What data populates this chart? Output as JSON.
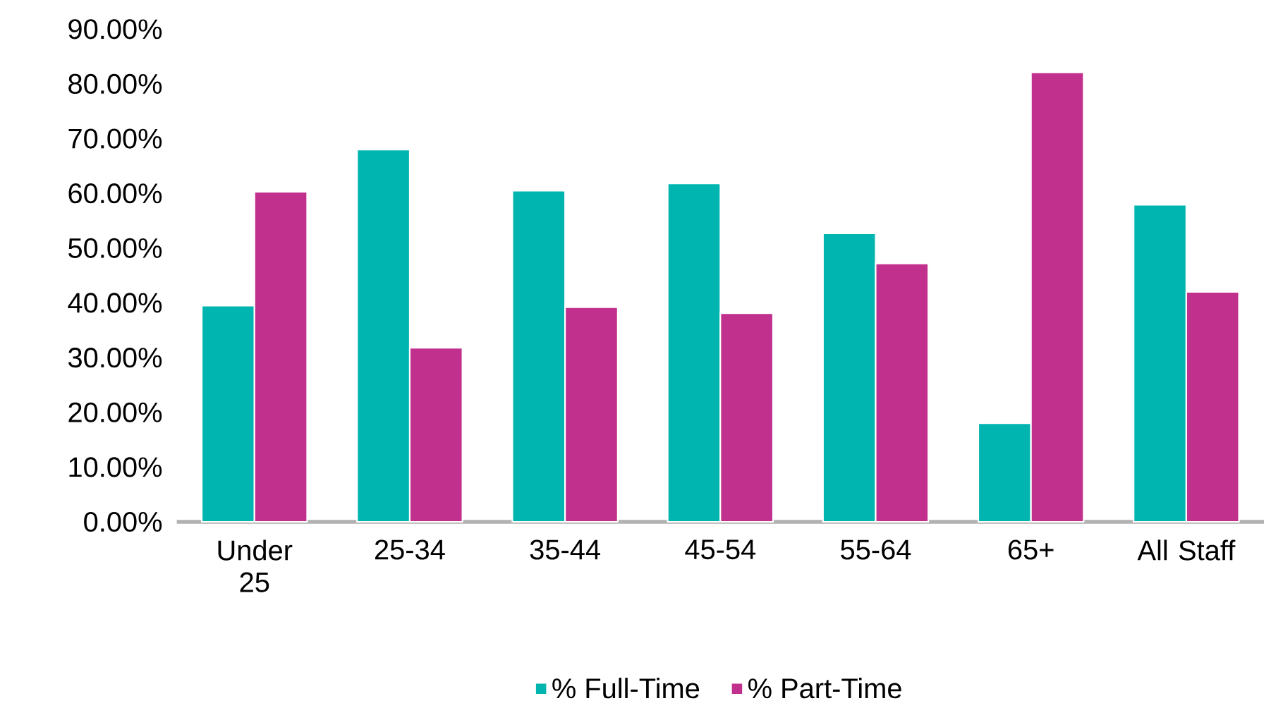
{
  "chart_data": {
    "type": "bar",
    "categories": [
      "Under 25",
      "25-34",
      "35-44",
      "45-54",
      "55-64",
      "65+",
      "All Staff"
    ],
    "series": [
      {
        "name": "% Full-Time",
        "color": "#00b5b0",
        "values": [
          39.5,
          68,
          60.5,
          61.8,
          52.7,
          18,
          57.9
        ]
      },
      {
        "name": "% Part-Time",
        "color": "#c2308e",
        "values": [
          60.3,
          31.8,
          39.2,
          38.1,
          47.2,
          82.1,
          42
        ]
      }
    ],
    "ylim": [
      0,
      90
    ],
    "yticks": [
      {
        "value": 0,
        "label": "0.00%"
      },
      {
        "value": 10,
        "label": "10.00%"
      },
      {
        "value": 20,
        "label": "20.00%"
      },
      {
        "value": 30,
        "label": "30.00%"
      },
      {
        "value": 40,
        "label": "40.00%"
      },
      {
        "value": 50,
        "label": "50.00%"
      },
      {
        "value": 60,
        "label": "60.00%"
      },
      {
        "value": 70,
        "label": "70.00%"
      },
      {
        "value": 80,
        "label": "80.00%"
      },
      {
        "value": 90,
        "label": "90.00%"
      }
    ],
    "legend": "bottom"
  }
}
